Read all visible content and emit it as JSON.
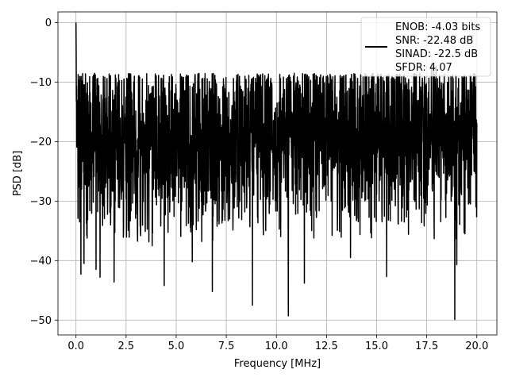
{
  "chart_data": {
    "type": "line",
    "title": "",
    "xlabel": "Frequency [MHz]",
    "ylabel": "PSD [dB]",
    "xlim": [
      -0.9,
      21.0
    ],
    "ylim": [
      -52.5,
      1.8
    ],
    "xticks": [
      0.0,
      2.5,
      5.0,
      7.5,
      10.0,
      12.5,
      15.0,
      17.5,
      20.0
    ],
    "xtick_labels": [
      "0.0",
      "2.5",
      "5.0",
      "7.5",
      "10.0",
      "12.5",
      "15.0",
      "17.5",
      "20.0"
    ],
    "yticks": [
      0,
      -10,
      -20,
      -30,
      -40,
      -50
    ],
    "ytick_labels": [
      "0",
      "−10",
      "−20",
      "−30",
      "−40",
      "−50"
    ],
    "grid": true,
    "legend_position": "top-right",
    "line_color": "#000000",
    "series": [
      {
        "x_range": [
          0.0,
          20.0
        ],
        "peak": {
          "x": 0.0,
          "y": 0.0
        },
        "noise_band": {
          "typical_min": -30,
          "typical_max": -10
        },
        "deep_nulls": [
          {
            "x": 0.25,
            "y": -42.3
          },
          {
            "x": 0.4,
            "y": -40.5
          },
          {
            "x": 1.0,
            "y": -41.5
          },
          {
            "x": 1.2,
            "y": -42.8
          },
          {
            "x": 1.9,
            "y": -43.6
          },
          {
            "x": 3.8,
            "y": -37.5
          },
          {
            "x": 4.4,
            "y": -44.2
          },
          {
            "x": 5.8,
            "y": -40.2
          },
          {
            "x": 6.8,
            "y": -45.2
          },
          {
            "x": 8.8,
            "y": -47.5
          },
          {
            "x": 10.6,
            "y": -49.3
          },
          {
            "x": 11.4,
            "y": -43.8
          },
          {
            "x": 13.7,
            "y": -39.5
          },
          {
            "x": 15.5,
            "y": -42.7
          },
          {
            "x": 18.9,
            "y": -49.9
          },
          {
            "x": 19.0,
            "y": -40.7
          }
        ]
      }
    ],
    "legend": {
      "lines": [
        "ENOB: -4.03 bits",
        "SNR: -22.48 dB",
        "SINAD: -22.5 dB",
        "SFDR: 4.07"
      ]
    }
  }
}
